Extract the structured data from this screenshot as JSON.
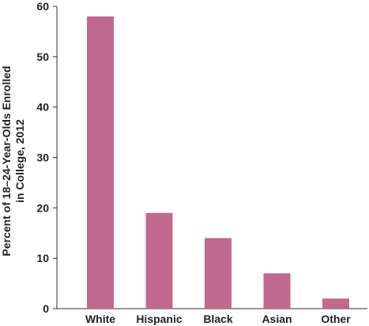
{
  "chart_data": {
    "type": "bar",
    "title": "",
    "xlabel": "",
    "ylabel": "Percent of 18–24-Year-Olds Enrolled in College, 2012",
    "ylabel_lines": [
      "Percent of 18–24-Year-Olds Enrolled",
      "in College, 2012"
    ],
    "categories": [
      "White",
      "Hispanic",
      "Black",
      "Asian",
      "Other"
    ],
    "values": [
      58,
      19,
      14,
      7,
      2
    ],
    "ylim": [
      0,
      60
    ],
    "yticks": [
      0,
      10,
      20,
      30,
      40,
      50,
      60
    ],
    "ytick_labels": [
      "0",
      "10",
      "20",
      "30",
      "40",
      "50",
      "60"
    ],
    "grid": false,
    "legend": "none",
    "bar_color": "#c1698f",
    "axis_color": "#333333"
  }
}
